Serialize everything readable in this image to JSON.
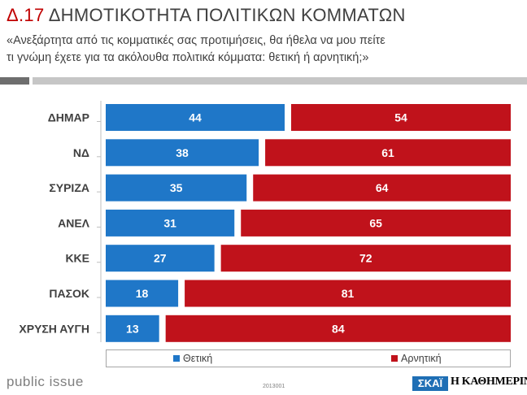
{
  "header": {
    "number": "Δ.17",
    "title": "ΔΗΜΟΤΙΚΟΤΗΤΑ ΠΟΛΙΤΙΚΩΝ ΚΟΜΜΑΤΩΝ",
    "subtitle_line1": "«Ανεξάρτητα από τις κομματικές σας προτιμήσεις, θα ήθελα να μου πείτε",
    "subtitle_line2": "τι γνώμη έχετε για τα ακόλουθα πολιτικά κόμματα: θετική ή αρνητική;»"
  },
  "chart_data": {
    "type": "bar",
    "orientation": "horizontal",
    "stacked": true,
    "categories": [
      "ΔΗΜΑΡ",
      "ΝΔ",
      "ΣΥΡΙΖΑ",
      "ΑΝΕΛ",
      "ΚΚΕ",
      "ΠΑΣΟΚ",
      "ΧΡΥΣΗ ΑΥΓΗ"
    ],
    "series": [
      {
        "name": "Θετική",
        "color": "#1f77c8",
        "values": [
          44,
          38,
          35,
          31,
          27,
          18,
          13
        ]
      },
      {
        "name": "Αρνητική",
        "color": "#c0121b",
        "values": [
          54,
          61,
          64,
          65,
          72,
          81,
          84
        ]
      }
    ],
    "data_labels": true,
    "legend_position": "bottom",
    "grid": false
  },
  "footer": {
    "brand": "public issue",
    "code": "2013001",
    "logo_skai": "ΣΚΑΪ",
    "logo_kathimerini": "Η ΚΑΘΗΜΕΡΙΝΗ"
  }
}
